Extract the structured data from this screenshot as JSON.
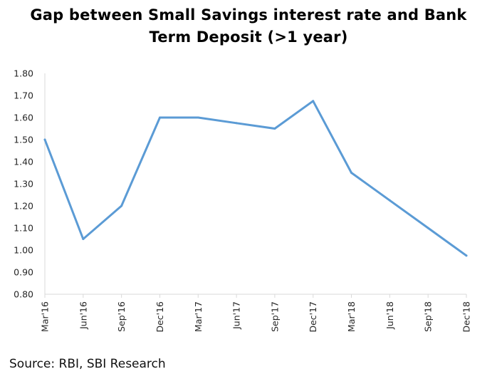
{
  "chart_data": {
    "type": "line",
    "title_line1": "Gap between Small Savings interest rate and Bank",
    "title_line2": "Term Deposit (>1 year)",
    "xlabel": "",
    "ylabel": "",
    "categories": [
      "Mar'16",
      "Jun'16",
      "Sep'16",
      "Dec'16",
      "Mar'17",
      "Jun'17",
      "Sep'17",
      "Dec'17",
      "Mar'18",
      "Jun'18",
      "Sep'18",
      "Dec'18"
    ],
    "series": [
      {
        "values": [
          1.5,
          1.05,
          1.2,
          1.6,
          1.6,
          1.575,
          1.55,
          1.675,
          1.35,
          1.225,
          1.1,
          0.975
        ],
        "color": "#5B9BD5"
      }
    ],
    "ylim": [
      0.8,
      1.8
    ],
    "yticks": [
      "0.80",
      "0.90",
      "1.00",
      "1.10",
      "1.20",
      "1.30",
      "1.40",
      "1.50",
      "1.60",
      "1.70",
      "1.80"
    ],
    "grid": false,
    "legend": "none"
  },
  "source_text": "Source: RBI, SBI Research"
}
